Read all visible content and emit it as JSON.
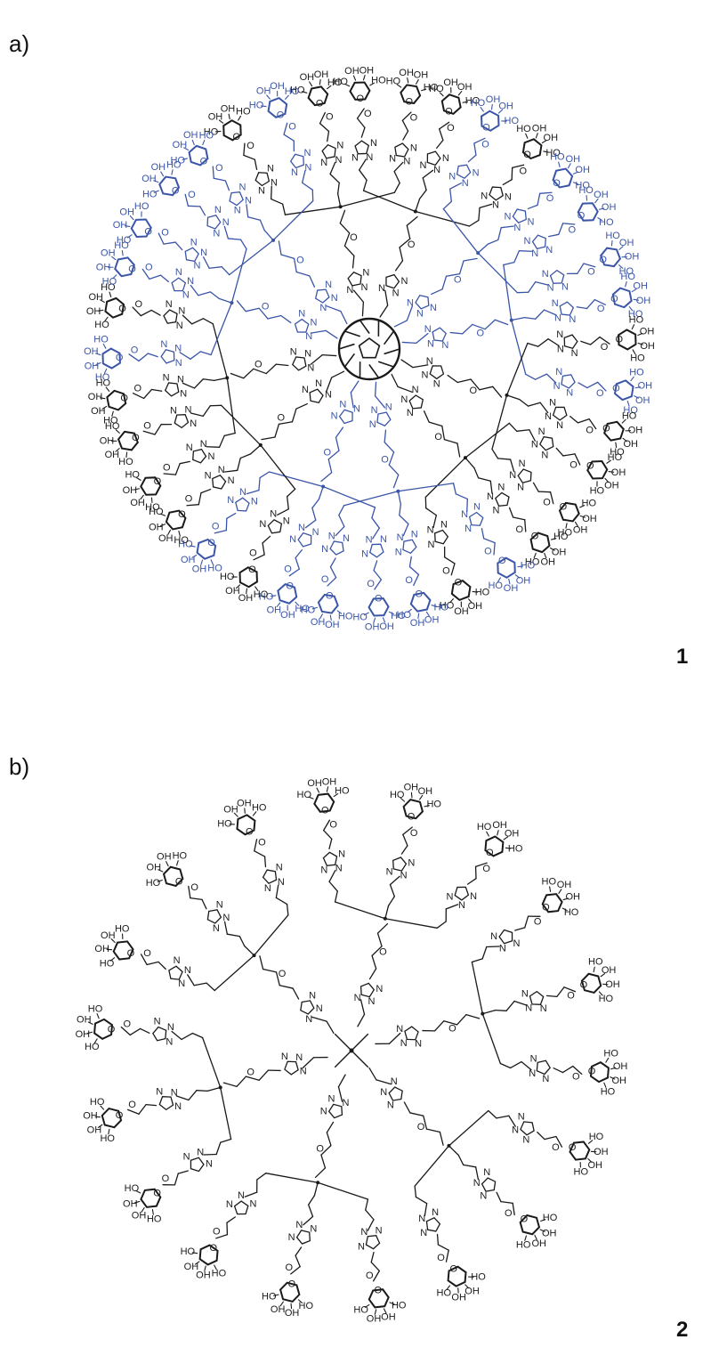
{
  "panel_a": {
    "label": "a)",
    "compound_number": "1",
    "core": "fullerene",
    "arms": [
      {
        "color": "black"
      },
      {
        "color": "black"
      },
      {
        "color": "blue"
      },
      {
        "color": "blue"
      },
      {
        "color": "black"
      },
      {
        "color": "black"
      },
      {
        "color": "blue"
      },
      {
        "color": "blue"
      },
      {
        "color": "black"
      },
      {
        "color": "black"
      },
      {
        "color": "blue"
      },
      {
        "color": "blue"
      }
    ]
  },
  "panel_b": {
    "label": "b)",
    "compound_number": "2",
    "core": "pentaerythritol"
  },
  "atoms": {
    "o": "O",
    "n": "N",
    "oh": "OH",
    "ho": "HO"
  },
  "colors": {
    "black": "#1a1a1a",
    "blue": "#3a55a8"
  }
}
